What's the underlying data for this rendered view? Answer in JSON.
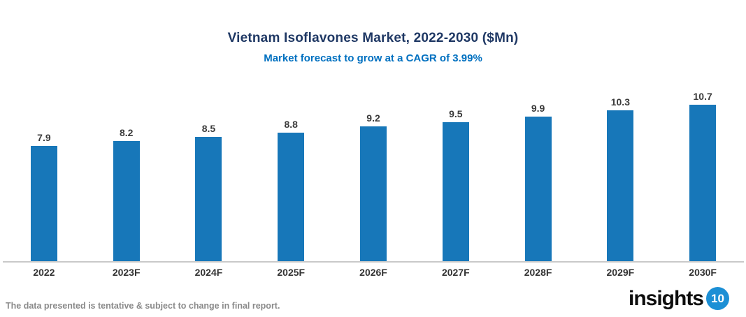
{
  "header": {
    "title": "Vietnam Isoflavones Market, 2022-2030 ($Mn)",
    "subtitle": "Market forecast to grow at a CAGR of 3.99%"
  },
  "chart_data": {
    "type": "bar",
    "title": "Vietnam Isoflavones Market, 2022-2030 ($Mn)",
    "subtitle": "Market forecast to grow at a CAGR of 3.99%",
    "categories": [
      "2022",
      "2023F",
      "2024F",
      "2025F",
      "2026F",
      "2027F",
      "2028F",
      "2029F",
      "2030F"
    ],
    "values": [
      7.9,
      8.2,
      8.5,
      8.8,
      9.2,
      9.5,
      9.9,
      10.3,
      10.7
    ],
    "value_labels": [
      "7.9",
      "8.2",
      "8.5",
      "8.8",
      "9.2",
      "9.5",
      "9.9",
      "10.3",
      "10.7"
    ],
    "xlabel": "",
    "ylabel": "",
    "ylim": [
      0,
      10.7
    ],
    "grid": false,
    "legend": "none",
    "bar_color": "#1777B9",
    "axis_line_color": "#C9C9C9"
  },
  "footer": {
    "disclaimer": "The data presented is tentative & subject to change in final report.",
    "logo_text": "insights",
    "logo_badge": "10"
  },
  "colors": {
    "title": "#1F3864",
    "subtitle": "#0070C0",
    "bar": "#1777B9",
    "axis_line": "#C9C9C9",
    "value_label": "#3B3B3B",
    "x_label": "#333333",
    "footer_text": "#8A8A8A",
    "logo_badge_bg": "#1C8FD5"
  }
}
